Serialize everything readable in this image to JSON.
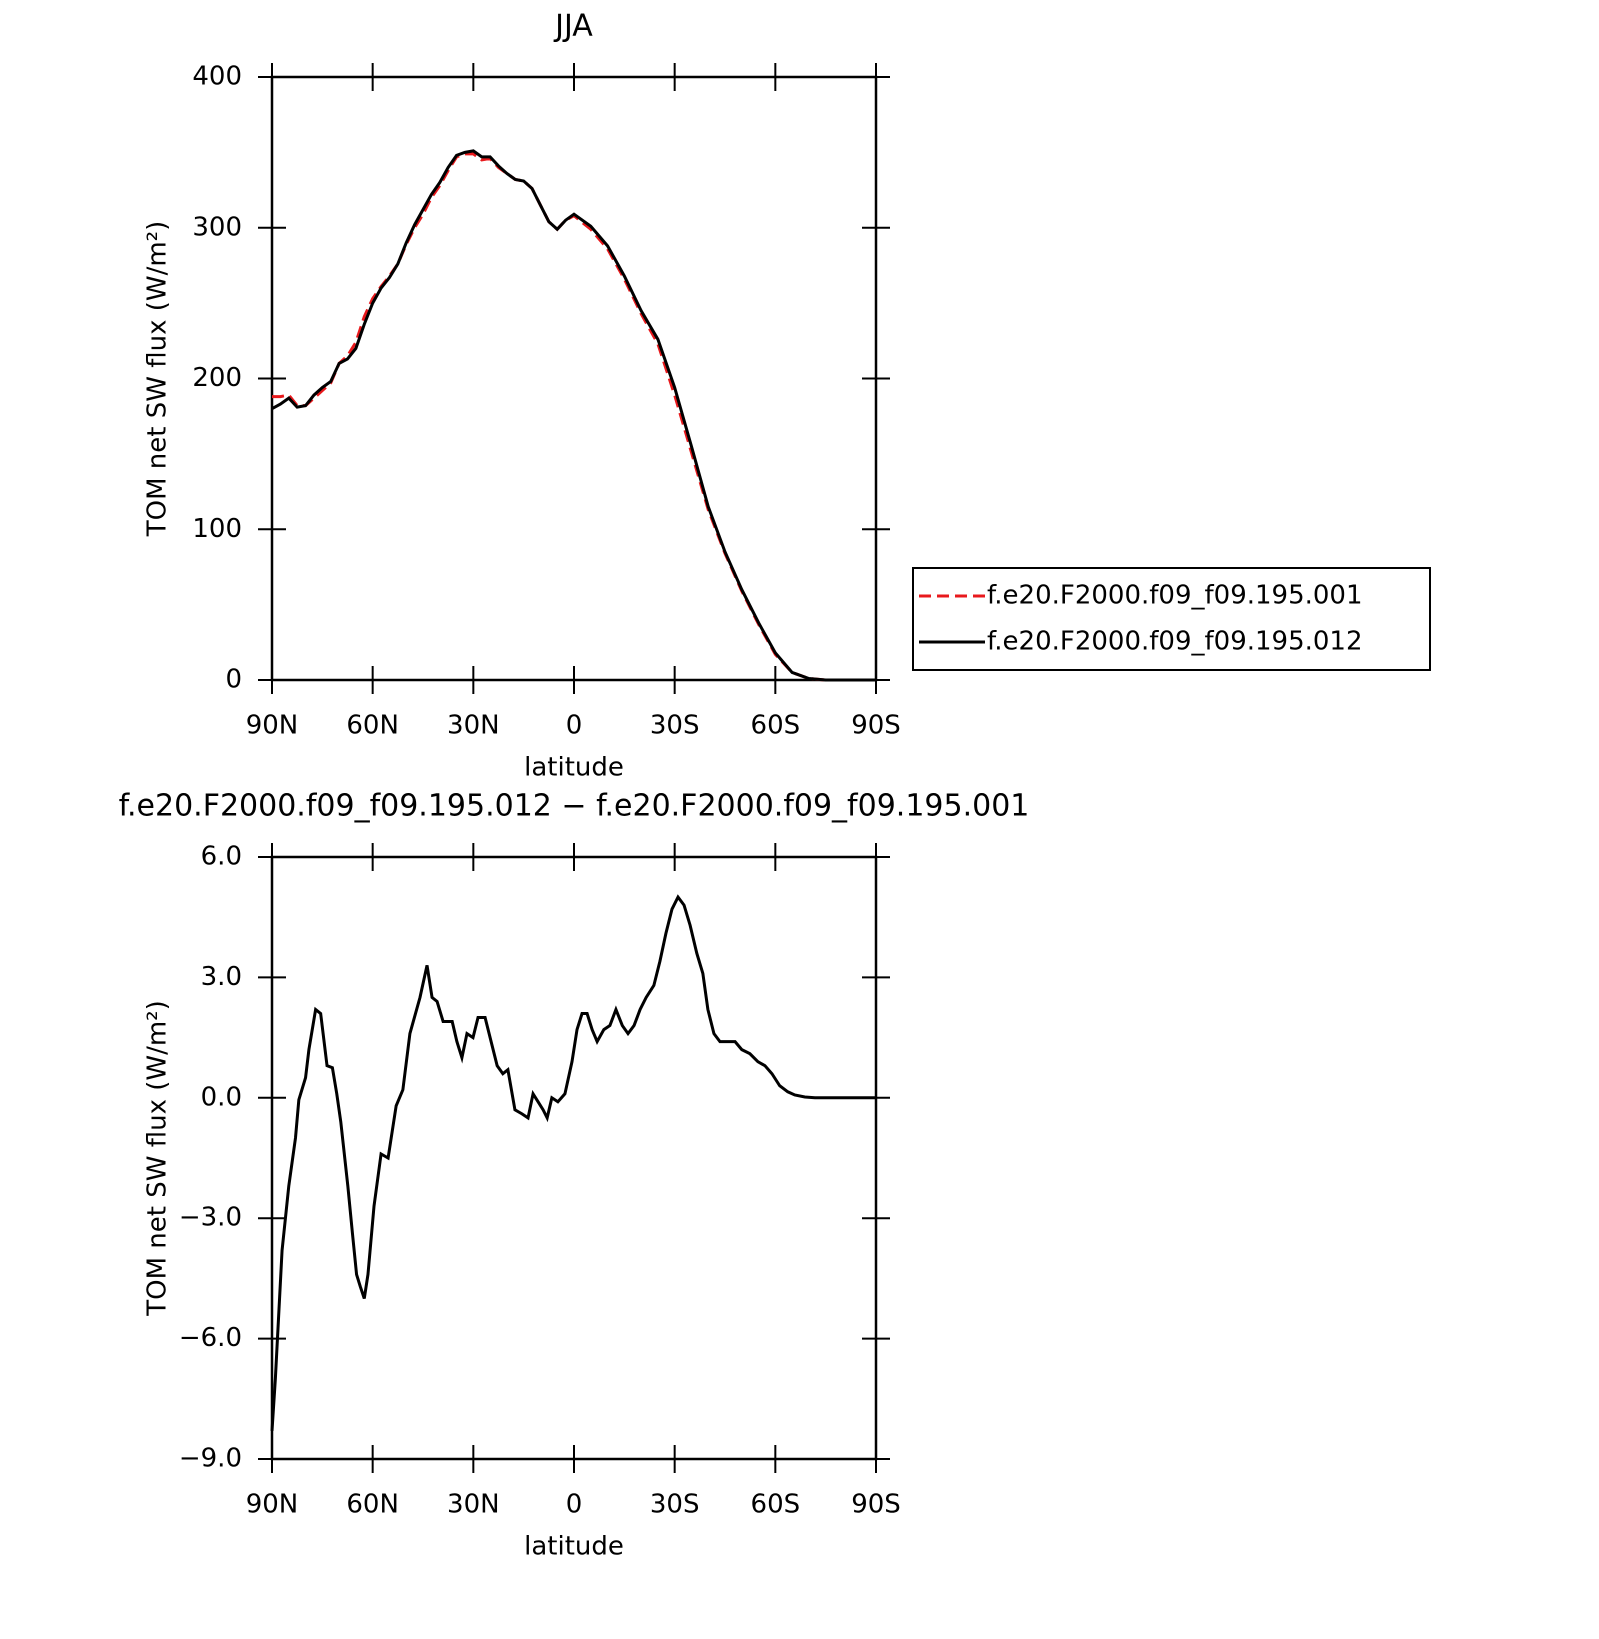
{
  "chart_data": [
    {
      "type": "line",
      "title": "JJA",
      "xlabel": "latitude",
      "ylabel": "TOM net SW flux (W/m²)",
      "x": [
        90,
        87.5,
        85,
        82.5,
        80,
        77.5,
        75,
        72.5,
        70,
        67.5,
        65,
        62.5,
        60,
        57.5,
        55,
        52.5,
        50,
        47.5,
        45,
        42.5,
        40,
        37.5,
        35,
        32.5,
        30,
        27.5,
        25,
        22.5,
        20,
        17.5,
        15,
        12.5,
        10,
        7.5,
        5,
        2.5,
        0,
        -5,
        -10,
        -15,
        -20,
        -25,
        -30,
        -35,
        -40,
        -45,
        -50,
        -55,
        -60,
        -65,
        -70,
        -75,
        -80,
        -85,
        -90
      ],
      "series": [
        {
          "name": "f.e20.F2000.f09_f09.195.001",
          "color": "#e8191c",
          "linestyle": "dashed",
          "values": [
            188,
            188,
            189,
            182,
            182,
            187,
            192,
            197,
            210,
            215,
            224,
            241,
            253,
            261,
            268,
            276,
            289,
            300,
            309,
            320,
            328,
            338,
            347,
            349,
            349,
            345,
            346,
            340,
            336,
            332,
            331,
            326,
            315,
            304,
            299,
            305,
            308,
            299,
            286,
            266,
            243,
            223,
            189,
            151,
            113,
            84,
            59,
            37,
            17,
            5,
            1,
            0,
            0,
            0,
            0
          ]
        },
        {
          "name": "f.e20.F2000.f09_f09.195.012",
          "color": "#000000",
          "linestyle": "solid",
          "values": [
            180,
            183,
            187,
            181,
            182,
            189,
            194,
            198,
            210,
            213,
            220,
            236,
            250,
            260,
            267,
            276,
            290,
            302,
            312,
            322,
            330,
            340,
            348,
            350,
            351,
            347,
            347,
            341,
            336,
            332,
            331,
            326,
            315,
            304,
            299,
            305,
            309,
            301,
            288,
            268,
            245,
            226,
            194,
            155,
            115,
            85,
            60,
            38,
            18,
            5,
            1,
            0,
            0,
            0,
            0
          ]
        }
      ],
      "xlim": [
        90,
        -90
      ],
      "xticks": [
        {
          "value": 90,
          "label": "90N"
        },
        {
          "value": 60,
          "label": "60N"
        },
        {
          "value": 30,
          "label": "30N"
        },
        0,
        {
          "value": -30,
          "label": "30S"
        },
        {
          "value": -60,
          "label": "60S"
        },
        {
          "value": -90,
          "label": "90S"
        }
      ],
      "ylim": [
        0,
        400
      ],
      "yticks": [
        0,
        100,
        200,
        300,
        400
      ],
      "legend": "right"
    },
    {
      "type": "line",
      "title": "f.e20.F2000.f09_f09.195.012 − f.e20.F2000.f09_f09.195.001",
      "xlabel": "latitude",
      "ylabel": "TOM net SW flux (W/m²)",
      "x": [
        90,
        89,
        87,
        85,
        83,
        82,
        80,
        79,
        77,
        75.5,
        73.6,
        72,
        70.7,
        69.5,
        67.4,
        66,
        64.8,
        63.7,
        62.5,
        61.4,
        59.6,
        57.5,
        55.4,
        53,
        51,
        48.9,
        45.9,
        43.8,
        42.3,
        40.8,
        39,
        36.3,
        34.9,
        33.4,
        31.9,
        30.1,
        28.6,
        26.5,
        24.4,
        22.9,
        21.2,
        19.7,
        17.6,
        15.5,
        13.7,
        12.2,
        10.7,
        9.2,
        8,
        6.6,
        4.8,
        2.7,
        0.6,
        -0.9,
        -2.4,
        -3.9,
        -5.4,
        -6.9,
        -8.9,
        -10.7,
        -12.5,
        -14.4,
        -16.1,
        -17.9,
        -19.7,
        -21.5,
        -23.8,
        -25.6,
        -27.4,
        -29.2,
        -31,
        -32.8,
        -34.6,
        -36.6,
        -38.4,
        -39.9,
        -41.7,
        -43.5,
        -45.6,
        -48,
        -50,
        -52.4,
        -54.8,
        -56.9,
        -59,
        -61.3,
        -63.7,
        -65.8,
        -68.8,
        -71.8,
        -90
      ],
      "series": [
        {
          "name": "f.e20.F2000.f09_f09.195.012 − f.e20.F2000.f09_f09.195.001",
          "color": "#000000",
          "linestyle": "solid",
          "values": [
            -8.3,
            -7,
            -3.8,
            -2.2,
            -1,
            -0.05,
            0.5,
            1.2,
            2.2,
            2.1,
            0.8,
            0.75,
            0.1,
            -0.6,
            -2.2,
            -3.4,
            -4.4,
            -4.7,
            -5.0,
            -4.4,
            -2.7,
            -1.4,
            -1.5,
            -0.2,
            0.2,
            1.6,
            2.5,
            3.3,
            2.5,
            2.4,
            1.9,
            1.9,
            1.4,
            1.0,
            1.6,
            1.5,
            2.0,
            2.0,
            1.3,
            0.8,
            0.6,
            0.7,
            -0.3,
            -0.4,
            -0.5,
            0.1,
            -0.1,
            -0.3,
            -0.5,
            0,
            -0.1,
            0.1,
            0.9,
            1.7,
            2.1,
            2.1,
            1.7,
            1.4,
            1.7,
            1.8,
            2.2,
            1.8,
            1.6,
            1.8,
            2.2,
            2.5,
            2.8,
            3.4,
            4.1,
            4.7,
            5.0,
            4.8,
            4.3,
            3.6,
            3.1,
            2.2,
            1.6,
            1.4,
            1.4,
            1.4,
            1.2,
            1.1,
            0.9,
            0.8,
            0.6,
            0.3,
            0.15,
            0.07,
            0.02,
            0,
            0
          ]
        }
      ],
      "xlim": [
        90,
        -90
      ],
      "xticks": [
        {
          "value": 90,
          "label": "90N"
        },
        {
          "value": 60,
          "label": "60N"
        },
        {
          "value": 30,
          "label": "30N"
        },
        0,
        {
          "value": -30,
          "label": "30S"
        },
        {
          "value": -60,
          "label": "60S"
        },
        {
          "value": -90,
          "label": "90S"
        }
      ],
      "ylim": [
        -9,
        6
      ],
      "yticks": [
        {
          "value": -9,
          "label": "−9.0"
        },
        {
          "value": -6,
          "label": "−6.0"
        },
        {
          "value": -3,
          "label": "−3.0"
        },
        {
          "value": 0,
          "label": "0.0"
        },
        {
          "value": 3,
          "label": "3.0"
        },
        {
          "value": 6,
          "label": "6.0"
        }
      ]
    }
  ]
}
